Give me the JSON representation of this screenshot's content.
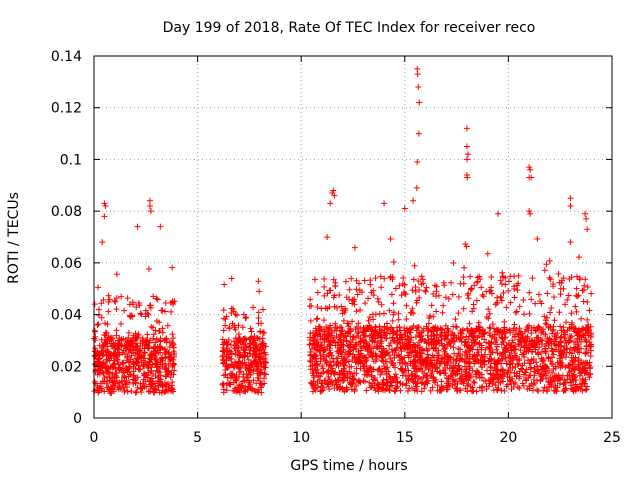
{
  "chart_data": {
    "type": "scatter",
    "title": "Day 199 of 2018, Rate Of TEC Index for receiver reco",
    "xlabel": "GPS time / hours",
    "ylabel": "ROTI / TECUs",
    "xlim": [
      0,
      25
    ],
    "ylim": [
      0,
      0.14
    ],
    "xticks": [
      0,
      5,
      10,
      15,
      20,
      25
    ],
    "xtick_labels": [
      "0",
      "5",
      "10",
      "15",
      "20",
      "25"
    ],
    "yticks": [
      0,
      0.02,
      0.04,
      0.06,
      0.08,
      0.1,
      0.12,
      0.14
    ],
    "ytick_labels": [
      "0",
      "0.02",
      "0.04",
      "0.06",
      "0.08",
      "0.1",
      "0.12",
      "0.14"
    ],
    "grid": true,
    "marker": "+",
    "color": "#ff0000",
    "series": [
      {
        "name": "ROTI",
        "segments": [
          {
            "start": 0.0,
            "end": 3.9,
            "base": 0.018,
            "spread": 0.012,
            "peak": 0.06
          },
          {
            "start": 6.2,
            "end": 8.3,
            "base": 0.018,
            "spread": 0.012,
            "peak": 0.054
          },
          {
            "start": 10.4,
            "end": 24.0,
            "base": 0.02,
            "spread": 0.014,
            "peak": 0.07
          }
        ],
        "highlights": [
          {
            "x": 0.5,
            "y": 0.083
          },
          {
            "x": 0.55,
            "y": 0.082
          },
          {
            "x": 0.5,
            "y": 0.078
          },
          {
            "x": 2.1,
            "y": 0.074
          },
          {
            "x": 2.7,
            "y": 0.084
          },
          {
            "x": 2.7,
            "y": 0.082
          },
          {
            "x": 2.75,
            "y": 0.08
          },
          {
            "x": 3.2,
            "y": 0.074
          },
          {
            "x": 0.4,
            "y": 0.068
          },
          {
            "x": 11.5,
            "y": 0.087
          },
          {
            "x": 11.55,
            "y": 0.088
          },
          {
            "x": 11.6,
            "y": 0.086
          },
          {
            "x": 11.4,
            "y": 0.083
          },
          {
            "x": 14.0,
            "y": 0.083
          },
          {
            "x": 15.0,
            "y": 0.081
          },
          {
            "x": 15.6,
            "y": 0.135
          },
          {
            "x": 15.62,
            "y": 0.133
          },
          {
            "x": 15.65,
            "y": 0.128
          },
          {
            "x": 15.7,
            "y": 0.122
          },
          {
            "x": 15.68,
            "y": 0.11
          },
          {
            "x": 15.6,
            "y": 0.099
          },
          {
            "x": 15.58,
            "y": 0.089
          },
          {
            "x": 15.4,
            "y": 0.084
          },
          {
            "x": 18.0,
            "y": 0.112
          },
          {
            "x": 18.0,
            "y": 0.105
          },
          {
            "x": 18.05,
            "y": 0.102
          },
          {
            "x": 18.0,
            "y": 0.1
          },
          {
            "x": 18.0,
            "y": 0.094
          },
          {
            "x": 18.02,
            "y": 0.093
          },
          {
            "x": 19.5,
            "y": 0.079
          },
          {
            "x": 21.0,
            "y": 0.097
          },
          {
            "x": 21.05,
            "y": 0.096
          },
          {
            "x": 21.0,
            "y": 0.093
          },
          {
            "x": 21.1,
            "y": 0.093
          },
          {
            "x": 21.0,
            "y": 0.08
          },
          {
            "x": 21.05,
            "y": 0.079
          },
          {
            "x": 23.0,
            "y": 0.085
          },
          {
            "x": 23.0,
            "y": 0.082
          },
          {
            "x": 23.7,
            "y": 0.079
          },
          {
            "x": 23.75,
            "y": 0.077
          },
          {
            "x": 23.0,
            "y": 0.068
          },
          {
            "x": 23.8,
            "y": 0.073
          }
        ]
      }
    ]
  }
}
